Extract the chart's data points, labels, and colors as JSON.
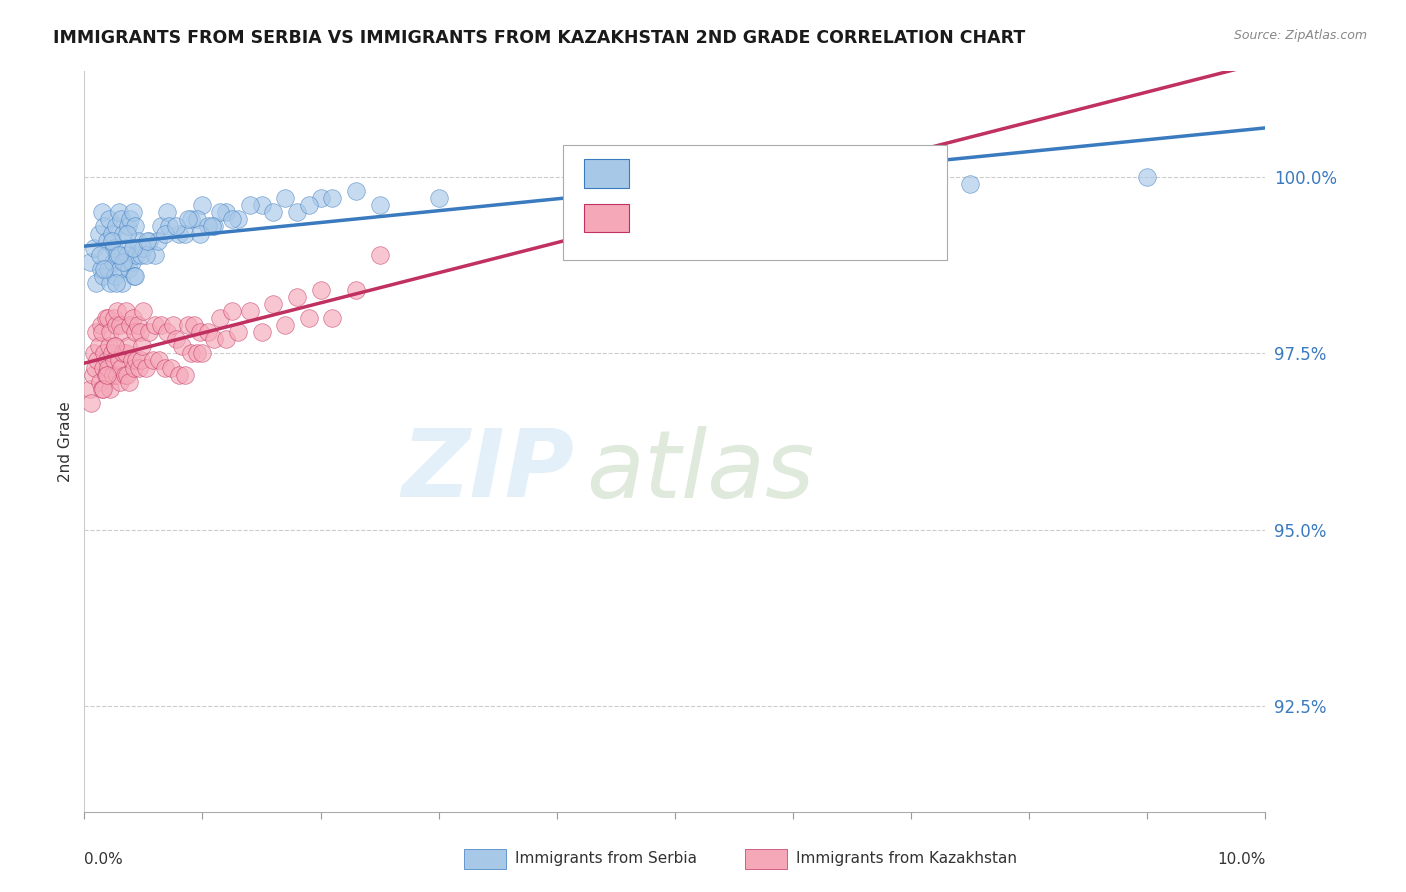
{
  "title": "IMMIGRANTS FROM SERBIA VS IMMIGRANTS FROM KAZAKHSTAN 2ND GRADE CORRELATION CHART",
  "source": "Source: ZipAtlas.com",
  "ylabel": "2nd Grade",
  "y_tick_labels": [
    "92.5%",
    "95.0%",
    "97.5%",
    "100.0%"
  ],
  "y_tick_values": [
    92.5,
    95.0,
    97.5,
    100.0
  ],
  "x_range": [
    0.0,
    10.0
  ],
  "y_range": [
    91.0,
    101.5
  ],
  "serbia_color": "#a8c8e8",
  "kazakhstan_color": "#f5a8b8",
  "trendline_serbia_color": "#3a7abf",
  "trendline_kazakhstan_color": "#c03060",
  "serbia_x": [
    0.05,
    0.08,
    0.1,
    0.12,
    0.14,
    0.15,
    0.16,
    0.17,
    0.18,
    0.19,
    0.2,
    0.21,
    0.22,
    0.23,
    0.24,
    0.25,
    0.26,
    0.27,
    0.28,
    0.29,
    0.3,
    0.31,
    0.32,
    0.33,
    0.34,
    0.35,
    0.36,
    0.37,
    0.38,
    0.39,
    0.4,
    0.41,
    0.42,
    0.43,
    0.44,
    0.45,
    0.48,
    0.5,
    0.55,
    0.6,
    0.65,
    0.7,
    0.8,
    0.9,
    1.0,
    1.1,
    1.2,
    1.3,
    1.5,
    1.8,
    2.0,
    2.5,
    3.0,
    4.5,
    7.5,
    9.0,
    0.13,
    0.23,
    0.27,
    0.33,
    0.36,
    0.43,
    0.52,
    0.62,
    0.72,
    0.85,
    0.95,
    1.05,
    1.15,
    1.25,
    1.4,
    1.6,
    1.7,
    1.9,
    2.1,
    2.3,
    0.17,
    0.29,
    0.41,
    0.53,
    0.68,
    0.78,
    0.88,
    0.98,
    1.08
  ],
  "serbia_y": [
    98.8,
    99.0,
    98.5,
    99.2,
    98.7,
    99.5,
    98.6,
    99.3,
    98.9,
    99.1,
    98.7,
    99.4,
    98.5,
    99.2,
    98.8,
    99.0,
    98.6,
    99.3,
    98.9,
    99.5,
    98.7,
    99.4,
    98.5,
    99.2,
    98.8,
    99.0,
    98.9,
    99.3,
    98.7,
    99.4,
    98.8,
    99.5,
    98.6,
    99.3,
    98.9,
    99.1,
    98.9,
    99.0,
    99.1,
    98.9,
    99.3,
    99.5,
    99.2,
    99.4,
    99.6,
    99.3,
    99.5,
    99.4,
    99.6,
    99.5,
    99.7,
    99.6,
    99.7,
    99.8,
    99.9,
    100.0,
    98.9,
    99.1,
    98.5,
    98.8,
    99.2,
    98.6,
    98.9,
    99.1,
    99.3,
    99.2,
    99.4,
    99.3,
    99.5,
    99.4,
    99.6,
    99.5,
    99.7,
    99.6,
    99.7,
    99.8,
    98.7,
    98.9,
    99.0,
    99.1,
    99.2,
    99.3,
    99.4,
    99.2,
    99.3
  ],
  "kazakhstan_x": [
    0.05,
    0.07,
    0.08,
    0.09,
    0.1,
    0.11,
    0.12,
    0.13,
    0.14,
    0.15,
    0.15,
    0.16,
    0.17,
    0.18,
    0.18,
    0.19,
    0.2,
    0.2,
    0.21,
    0.22,
    0.22,
    0.23,
    0.24,
    0.25,
    0.25,
    0.26,
    0.27,
    0.28,
    0.28,
    0.29,
    0.3,
    0.3,
    0.31,
    0.32,
    0.33,
    0.34,
    0.35,
    0.35,
    0.36,
    0.37,
    0.38,
    0.39,
    0.4,
    0.41,
    0.42,
    0.43,
    0.44,
    0.45,
    0.46,
    0.47,
    0.48,
    0.49,
    0.5,
    0.52,
    0.55,
    0.58,
    0.6,
    0.63,
    0.65,
    0.68,
    0.7,
    0.73,
    0.75,
    0.78,
    0.8,
    0.83,
    0.85,
    0.88,
    0.9,
    0.93,
    0.95,
    0.98,
    1.0,
    1.05,
    1.1,
    1.15,
    1.2,
    1.25,
    1.3,
    1.4,
    1.5,
    1.6,
    1.7,
    1.8,
    1.9,
    2.0,
    2.1,
    2.3,
    2.5,
    0.06,
    0.16,
    0.19,
    0.26
  ],
  "kazakhstan_y": [
    97.0,
    97.2,
    97.5,
    97.3,
    97.8,
    97.4,
    97.6,
    97.1,
    97.9,
    97.0,
    97.8,
    97.3,
    97.5,
    97.2,
    98.0,
    97.4,
    97.3,
    98.0,
    97.6,
    97.0,
    97.8,
    97.5,
    97.2,
    97.4,
    98.0,
    97.6,
    97.9,
    97.2,
    98.1,
    97.4,
    97.1,
    97.9,
    97.3,
    97.8,
    97.5,
    97.2,
    97.5,
    98.1,
    97.2,
    97.6,
    97.1,
    97.9,
    97.4,
    98.0,
    97.3,
    97.8,
    97.4,
    97.9,
    97.3,
    97.8,
    97.4,
    97.6,
    98.1,
    97.3,
    97.8,
    97.4,
    97.9,
    97.4,
    97.9,
    97.3,
    97.8,
    97.3,
    97.9,
    97.7,
    97.2,
    97.6,
    97.2,
    97.9,
    97.5,
    97.9,
    97.5,
    97.8,
    97.5,
    97.8,
    97.7,
    98.0,
    97.7,
    98.1,
    97.8,
    98.1,
    97.8,
    98.2,
    97.9,
    98.3,
    98.0,
    98.4,
    98.0,
    98.4,
    98.9,
    96.8,
    97.0,
    97.2,
    97.6
  ]
}
